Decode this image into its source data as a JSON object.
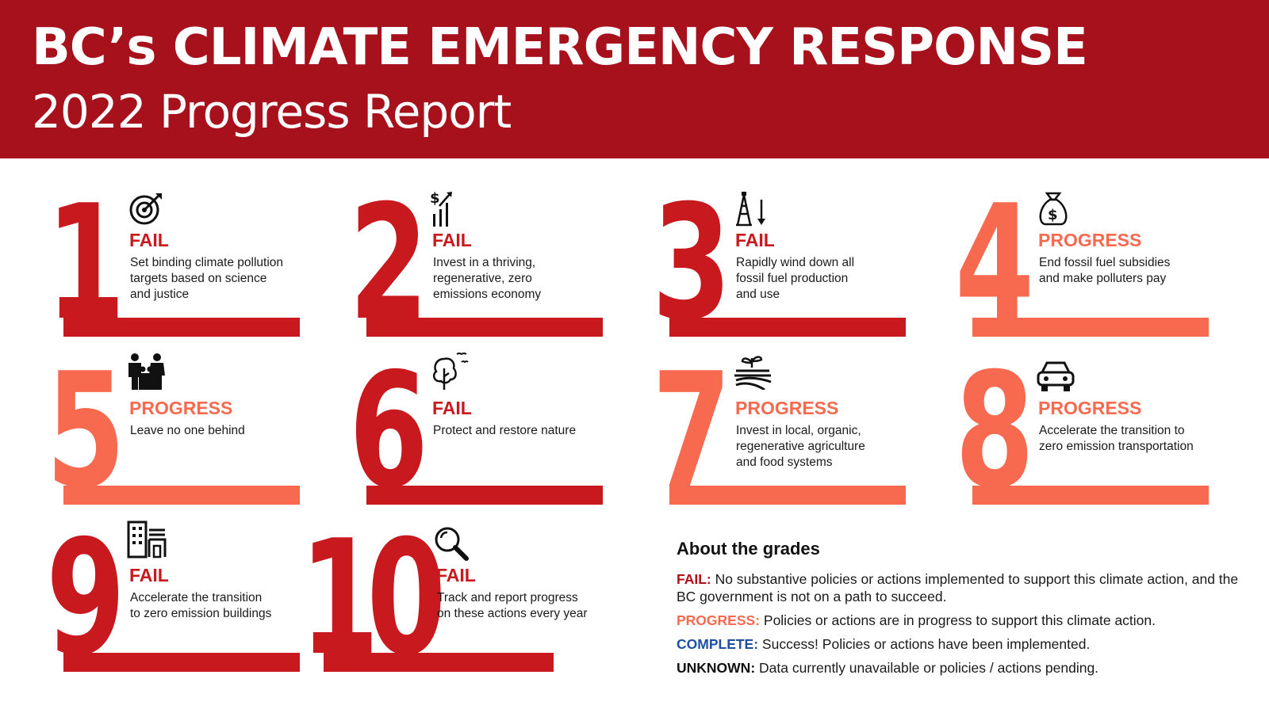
{
  "header": {
    "title": "BC’s CLIMATE EMERGENCY RESPONSE",
    "subtitle": "2022 Progress Report"
  },
  "colors": {
    "header_bg": "#a6111c",
    "fail": "#c8191f",
    "progress": "#f76a4f",
    "complete": "#1e4fa0",
    "unknown": "#111111"
  },
  "actions": [
    {
      "number": "1",
      "status": "FAIL",
      "icon": "target-icon",
      "text": "Set binding climate pollution\ntargets based on science\nand justice"
    },
    {
      "number": "2",
      "status": "FAIL",
      "icon": "growth-chart-icon",
      "text": "Invest in a thriving,\nregenerative, zero\nemissions economy"
    },
    {
      "number": "3",
      "status": "FAIL",
      "icon": "oil-derrick-icon",
      "text": "Rapidly wind down all\nfossil fuel production\nand use"
    },
    {
      "number": "4",
      "status": "PROGRESS",
      "icon": "money-bag-icon",
      "text": "End fossil fuel subsidies\nand make polluters pay"
    },
    {
      "number": "5",
      "status": "PROGRESS",
      "icon": "family-icon",
      "text": "Leave no one behind"
    },
    {
      "number": "6",
      "status": "FAIL",
      "icon": "tree-birds-icon",
      "text": "Protect and restore nature"
    },
    {
      "number": "7",
      "status": "PROGRESS",
      "icon": "farm-field-icon",
      "text": "Invest in local, organic,\nregenerative agriculture\nand food systems"
    },
    {
      "number": "8",
      "status": "PROGRESS",
      "icon": "car-icon",
      "text": "Accelerate the transition to\nzero emission transportation"
    },
    {
      "number": "9",
      "status": "FAIL",
      "icon": "buildings-icon",
      "text": "Accelerate the transition\nto zero emission buildings"
    },
    {
      "number": "10",
      "status": "FAIL",
      "icon": "magnifier-icon",
      "text": "Track and report progress\non these actions every year"
    }
  ],
  "about": {
    "title": "About the grades",
    "items": [
      {
        "label": "FAIL:",
        "text": " No substantive policies or actions implemented to support this climate action, and the BC government is not on a path to succeed."
      },
      {
        "label": "PROGRESS:",
        "text": " Policies or actions are in progress to support this climate action."
      },
      {
        "label": "COMPLETE:",
        "text": " Success! Policies or actions have been implemented."
      },
      {
        "label": "UNKNOWN:",
        "text": " Data currently unavailable or policies / actions pending."
      }
    ]
  }
}
